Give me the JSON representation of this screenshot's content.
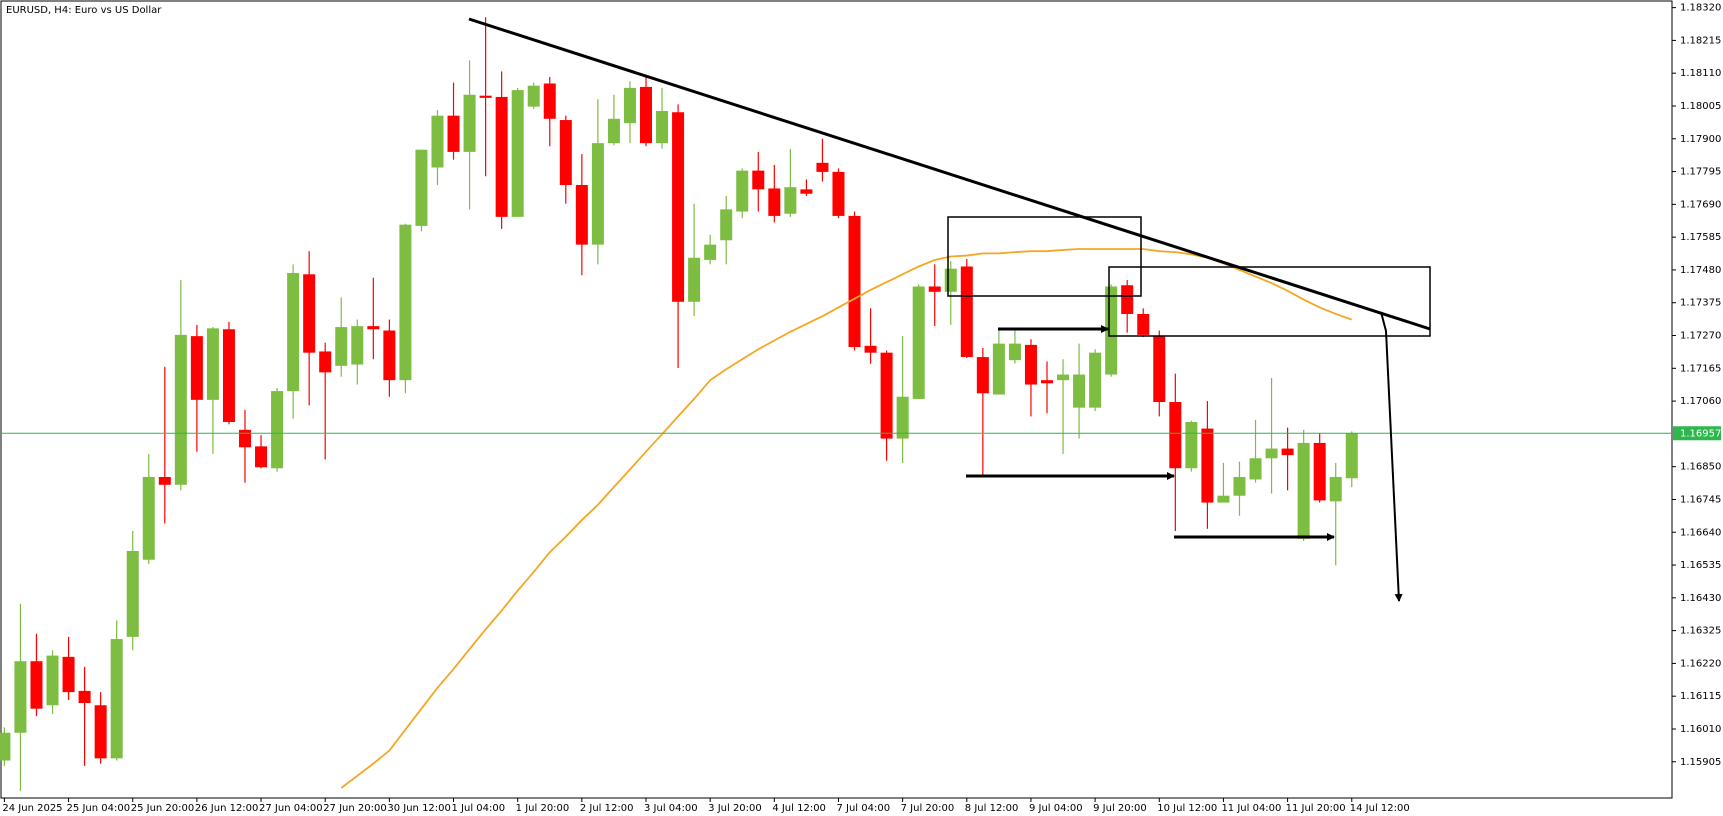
{
  "chart_data": {
    "type": "candlestick",
    "title": "EURUSD, H4:  Euro vs US Dollar",
    "categories": [
      "24 Jun 2025",
      null,
      null,
      null,
      "25 Jun 04:00",
      null,
      null,
      null,
      "25 Jun 20:00",
      null,
      null,
      null,
      "26 Jun 12:00",
      null,
      null,
      null,
      "27 Jun 04:00",
      null,
      null,
      null,
      "27 Jun 20:00",
      null,
      null,
      null,
      "30 Jun 12:00",
      null,
      null,
      null,
      "1 Jul 04:00",
      null,
      null,
      null,
      "1 Jul 20:00",
      null,
      null,
      null,
      "2 Jul 12:00",
      null,
      null,
      null,
      "3 Jul 04:00",
      null,
      null,
      null,
      "3 Jul 20:00",
      null,
      null,
      null,
      "4 Jul 12:00",
      null,
      null,
      null,
      "7 Jul 04:00",
      null,
      null,
      null,
      "7 Jul 20:00",
      null,
      null,
      null,
      "8 Jul 12:00",
      null,
      null,
      null,
      "9 Jul 04:00",
      null,
      null,
      null,
      "9 Jul 20:00",
      null,
      null,
      null,
      "10 Jul 12:00",
      null,
      null,
      null,
      "11 Jul 04:00",
      null,
      null,
      null,
      "11 Jul 20:00",
      null,
      null,
      null,
      "14 Jul 12:00"
    ],
    "open": [
      1.15909,
      1.15998,
      1.16227,
      1.16086,
      1.16241,
      1.16132,
      1.16086,
      1.15916,
      1.16305,
      1.16552,
      1.16817,
      1.16792,
      1.17268,
      1.17064,
      1.1729,
      1.16968,
      1.16915,
      1.16845,
      1.17092,
      1.17466,
      1.17219,
      1.17173,
      1.17177,
      1.173,
      1.17286,
      1.17127,
      1.17621,
      1.17808,
      1.17974,
      1.17858,
      1.18038,
      1.18034,
      1.1765,
      1.18003,
      1.18077,
      1.1796,
      1.17752,
      1.17561,
      1.17886,
      1.1795,
      1.18066,
      1.17886,
      1.17985,
      1.17378,
      1.17512,
      1.17575,
      1.17667,
      1.17798,
      1.17741,
      1.1766,
      1.17738,
      1.17823,
      1.17794,
      1.17653,
      1.17237,
      1.17215,
      1.1694,
      1.17067,
      1.17427,
      1.1741,
      1.17491,
      1.17201,
      1.17081,
      1.17191,
      1.1724,
      1.17127,
      1.17127,
      1.17039,
      1.17039,
      1.17145,
      1.17431,
      1.17339,
      1.17268,
      1.17057,
      1.16845,
      1.16972,
      1.16735,
      1.16757,
      1.16809,
      1.16877,
      1.16908,
      1.16619,
      1.16926,
      1.16739,
      1.16813
    ],
    "high": [
      1.16015,
      1.16411,
      1.16315,
      1.16262,
      1.16305,
      1.16209,
      1.16128,
      1.16358,
      1.16644,
      1.16891,
      1.1717,
      1.17448,
      1.17304,
      1.17297,
      1.17314,
      1.17032,
      1.16951,
      1.17102,
      1.17498,
      1.1754,
      1.17247,
      1.17392,
      1.17321,
      1.17455,
      1.17321,
      1.17628,
      1.17865,
      1.17992,
      1.1808,
      1.18151,
      1.18289,
      1.18116,
      1.18063,
      1.1808,
      1.18098,
      1.17974,
      1.17851,
      1.18027,
      1.18041,
      1.18084,
      1.18098,
      1.18063,
      1.1801,
      1.17692,
      1.17593,
      1.17717,
      1.17805,
      1.17858,
      1.17816,
      1.17868,
      1.1777,
      1.179,
      1.17805,
      1.17667,
      1.17357,
      1.17222,
      1.17268,
      1.17434,
      1.17498,
      1.17508,
      1.17515,
      1.1723,
      1.17286,
      1.17293,
      1.17258,
      1.17187,
      1.17194,
      1.17244,
      1.17226,
      1.17434,
      1.17448,
      1.17357,
      1.17286,
      1.17148,
      1.16997,
      1.1706,
      1.16862,
      1.16866,
      1.17,
      1.17134,
      1.16975,
      1.16968,
      1.16958,
      1.16862,
      1.16963
    ],
    "low": [
      1.15892,
      1.15811,
      1.16051,
      1.16058,
      1.16103,
      1.15892,
      1.15899,
      1.15909,
      1.16262,
      1.16538,
      1.16668,
      1.16774,
      1.16898,
      1.16891,
      1.16986,
      1.16799,
      1.16845,
      1.16834,
      1.17004,
      1.17046,
      1.16873,
      1.17138,
      1.17113,
      1.17194,
      1.17074,
      1.17085,
      1.17604,
      1.17752,
      1.17833,
      1.17674,
      1.1778,
      1.17611,
      1.1765,
      1.17996,
      1.17876,
      1.17692,
      1.17463,
      1.17498,
      1.17879,
      1.17886,
      1.17876,
      1.17868,
      1.17166,
      1.17332,
      1.17498,
      1.17498,
      1.17646,
      1.17667,
      1.17632,
      1.1765,
      1.17717,
      1.17763,
      1.17646,
      1.17222,
      1.1718,
      1.16869,
      1.16862,
      1.17067,
      1.173,
      1.17304,
      1.17198,
      1.1682,
      1.17081,
      1.1718,
      1.17011,
      1.17021,
      1.16891,
      1.1694,
      1.17028,
      1.17138,
      1.17279,
      1.17265,
      1.17011,
      1.16644,
      1.16834,
      1.16651,
      1.16735,
      1.16693,
      1.16799,
      1.16764,
      1.16774,
      1.16612,
      1.16735,
      1.16534,
      1.16785
    ],
    "close": [
      1.15998,
      1.16227,
      1.16075,
      1.16245,
      1.16128,
      1.16093,
      1.15916,
      1.16298,
      1.1658,
      1.16817,
      1.16792,
      1.17272,
      1.17064,
      1.17293,
      1.16993,
      1.16912,
      1.16848,
      1.17092,
      1.1747,
      1.17215,
      1.17152,
      1.17297,
      1.173,
      1.1729,
      1.17127,
      1.17625,
      1.17865,
      1.17974,
      1.17858,
      1.18041,
      1.18031,
      1.1765,
      1.18056,
      1.1807,
      1.17964,
      1.17752,
      1.17561,
      1.17886,
      1.17964,
      1.18063,
      1.17886,
      1.17989,
      1.17378,
      1.17519,
      1.17561,
      1.17674,
      1.17798,
      1.17738,
      1.17653,
      1.17745,
      1.17724,
      1.17794,
      1.17653,
      1.17233,
      1.17215,
      1.1694,
      1.17074,
      1.17427,
      1.1741,
      1.17484,
      1.17201,
      1.17085,
      1.17244,
      1.17244,
      1.17113,
      1.17117,
      1.17145,
      1.17145,
      1.17215,
      1.17427,
      1.17339,
      1.17272,
      1.17057,
      1.16845,
      1.16993,
      1.16735,
      1.16757,
      1.16817,
      1.16877,
      1.16908,
      1.16887,
      1.16926,
      1.16742,
      1.16817,
      1.16957
    ],
    "up_color": "#7cbd42",
    "down_color": "#ff0000",
    "moving_average": {
      "color": "#f5a623",
      "values": [
        null,
        null,
        null,
        null,
        null,
        null,
        null,
        null,
        null,
        null,
        null,
        null,
        null,
        null,
        null,
        null,
        null,
        null,
        null,
        null,
        null,
        1.15821,
        1.1586,
        1.15899,
        1.15941,
        1.16008,
        1.16075,
        1.16142,
        1.16202,
        1.16266,
        1.16329,
        1.16389,
        1.16453,
        1.16513,
        1.16576,
        1.16626,
        1.16679,
        1.16728,
        1.16785,
        1.16841,
        1.16898,
        1.16954,
        1.17011,
        1.17067,
        1.17127,
        1.17162,
        1.17194,
        1.17226,
        1.17254,
        1.17282,
        1.17307,
        1.17332,
        1.1736,
        1.17388,
        1.17416,
        1.17441,
        1.17466,
        1.17491,
        1.17512,
        1.17523,
        1.17526,
        1.17533,
        1.17533,
        1.17537,
        1.1754,
        1.1754,
        1.17544,
        1.17547,
        1.17547,
        1.17547,
        1.17547,
        1.17547,
        1.1754,
        1.17537,
        1.1753,
        1.17519,
        1.17501,
        1.1748,
        1.17459,
        1.17438,
        1.17413,
        1.17385,
        1.1736,
        1.17339,
        1.17321
      ]
    },
    "current_price": 1.16957,
    "current_price_color": "#2db84d",
    "ylim": [
      1.15789,
      1.18338
    ],
    "yticks": [
      {
        "value": 1.1832,
        "label": "1.18320"
      },
      {
        "value": 1.18215,
        "label": "1.18215"
      },
      {
        "value": 1.1811,
        "label": "1.18110"
      },
      {
        "value": 1.18005,
        "label": "1.18005"
      },
      {
        "value": 1.179,
        "label": "1.17900"
      },
      {
        "value": 1.17795,
        "label": "1.17795"
      },
      {
        "value": 1.1769,
        "label": "1.17690"
      },
      {
        "value": 1.17585,
        "label": "1.17585"
      },
      {
        "value": 1.1748,
        "label": "1.17480"
      },
      {
        "value": 1.17375,
        "label": "1.17375"
      },
      {
        "value": 1.1727,
        "label": "1.17270"
      },
      {
        "value": 1.17165,
        "label": "1.17165"
      },
      {
        "value": 1.1706,
        "label": "1.17060"
      },
      {
        "value": 1.1685,
        "label": "1.16850"
      },
      {
        "value": 1.16745,
        "label": "1.16745"
      },
      {
        "value": 1.1664,
        "label": "1.16640"
      },
      {
        "value": 1.16535,
        "label": "1.16535"
      },
      {
        "value": 1.1643,
        "label": "1.16430"
      },
      {
        "value": 1.16325,
        "label": "1.16325"
      },
      {
        "value": 1.1622,
        "label": "1.16220"
      },
      {
        "value": 1.16115,
        "label": "1.16115"
      },
      {
        "value": 1.1601,
        "label": "1.16010"
      },
      {
        "value": 1.15905,
        "label": "1.15905"
      }
    ]
  }
}
